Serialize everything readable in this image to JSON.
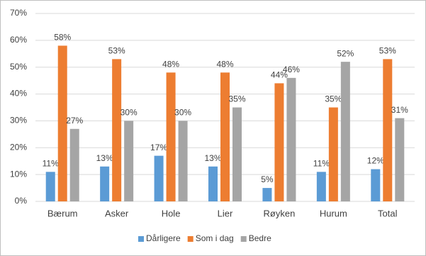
{
  "chart_data": {
    "type": "bar",
    "categories": [
      "Bærum",
      "Asker",
      "Hole",
      "Lier",
      "Røyken",
      "Hurum",
      "Total"
    ],
    "series": [
      {
        "name": "Dårligere",
        "color": "#5b9bd5",
        "values": [
          11,
          13,
          17,
          13,
          5,
          11,
          12
        ],
        "value_labels": [
          "11%",
          "13%",
          "17%",
          "13%",
          "5%",
          "11%",
          "12%"
        ]
      },
      {
        "name": "Som i dag",
        "color": "#ed7d31",
        "values": [
          58,
          53,
          48,
          48,
          44,
          35,
          53
        ],
        "value_labels": [
          "58%",
          "53%",
          "48%",
          "48%",
          "44%",
          "35%",
          "53%"
        ]
      },
      {
        "name": "Bedre",
        "color": "#a5a5a5",
        "values": [
          27,
          30,
          30,
          35,
          46,
          52,
          31
        ],
        "value_labels": [
          "27%",
          "30%",
          "30%",
          "35%",
          "46%",
          "52%",
          "31%"
        ]
      }
    ],
    "ylim": [
      0,
      70
    ],
    "yticks": [
      {
        "value": 0,
        "label": "0%"
      },
      {
        "value": 10,
        "label": "10%"
      },
      {
        "value": 20,
        "label": "20%"
      },
      {
        "value": 30,
        "label": "30%"
      },
      {
        "value": 40,
        "label": "40%"
      },
      {
        "value": 50,
        "label": "50%"
      },
      {
        "value": 60,
        "label": "60%"
      },
      {
        "value": 70,
        "label": "70%"
      }
    ],
    "grid": true,
    "legend": "bottom"
  }
}
